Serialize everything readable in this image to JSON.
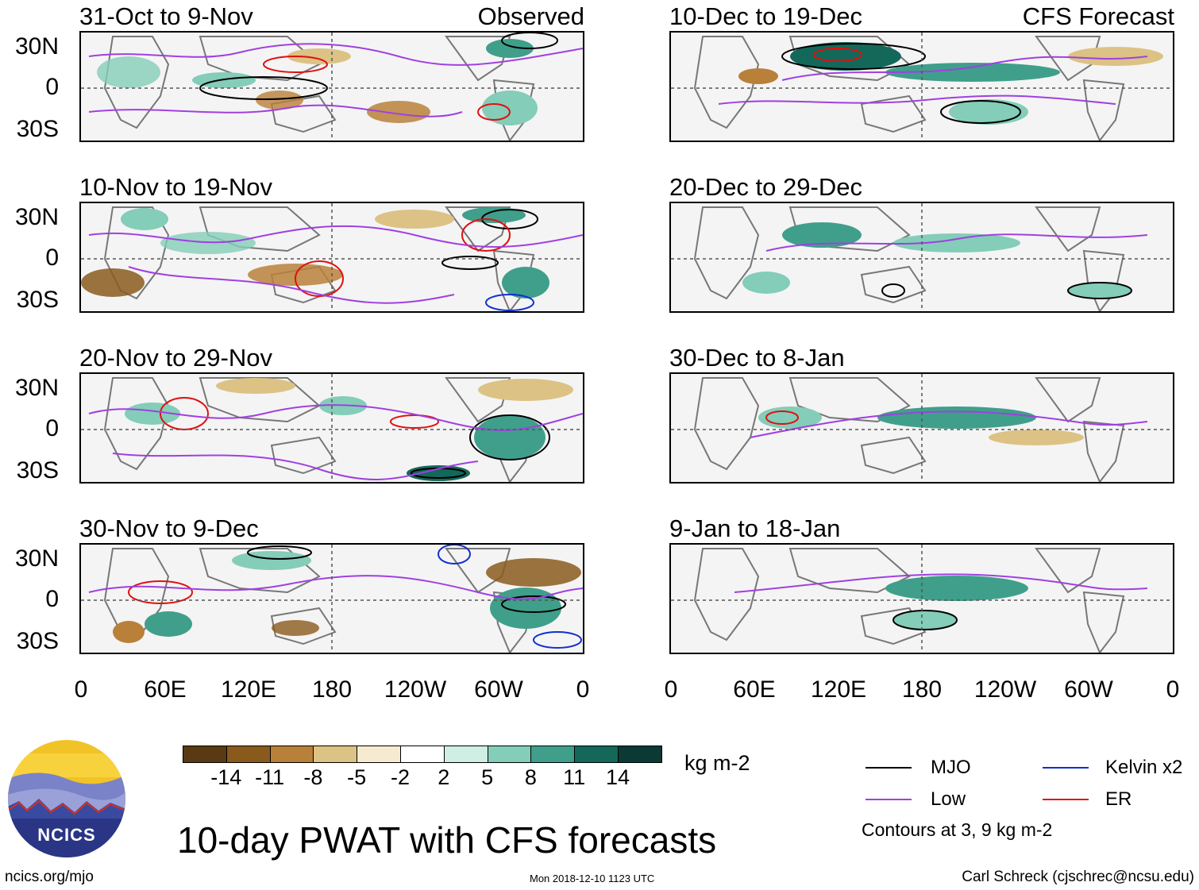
{
  "header": {
    "observed_label": "Observed",
    "forecast_label": "CFS Forecast"
  },
  "left_panels": [
    {
      "title": "31-Oct to 9-Nov"
    },
    {
      "title": "10-Nov to 19-Nov"
    },
    {
      "title": "20-Nov to 29-Nov"
    },
    {
      "title": "30-Nov to 9-Dec"
    }
  ],
  "right_panels": [
    {
      "title": "10-Dec to 19-Dec"
    },
    {
      "title": "20-Dec to 29-Dec"
    },
    {
      "title": "30-Dec to 8-Jan"
    },
    {
      "title": "9-Jan to 18-Jan"
    }
  ],
  "axes": {
    "lat_ticks": [
      "30N",
      "0",
      "30S"
    ],
    "lon_ticks": [
      "0",
      "60E",
      "120E",
      "180",
      "120W",
      "60W",
      "0"
    ]
  },
  "colorbar": {
    "unit": "kg m-2",
    "labels": [
      "-14",
      "-11",
      "-8",
      "-5",
      "-2",
      "2",
      "5",
      "8",
      "11",
      "14"
    ],
    "colors": [
      "#5a3a12",
      "#8a5a1c",
      "#b98039",
      "#dcc285",
      "#f6ead0",
      "#ffffff",
      "#cfeee4",
      "#84cdb8",
      "#3f9f8b",
      "#13685a",
      "#0a3a33"
    ]
  },
  "legend": {
    "items": [
      {
        "label": "MJO",
        "color": "#000000"
      },
      {
        "label": "Kelvin x2",
        "color": "#1030d0"
      },
      {
        "label": "Low",
        "color": "#a040e0"
      },
      {
        "label": "ER",
        "color": "#e01010"
      }
    ],
    "note": "Contours at 3, 9 kg m-2"
  },
  "logo": {
    "text": "NCICS"
  },
  "footer": {
    "title": "10-day PWAT with CFS forecasts",
    "url": "ncics.org/mjo",
    "timestamp": "Mon 2018-12-10 1123 UTC",
    "credit": "Carl Schreck (cjschrec@ncsu.edu)"
  }
}
